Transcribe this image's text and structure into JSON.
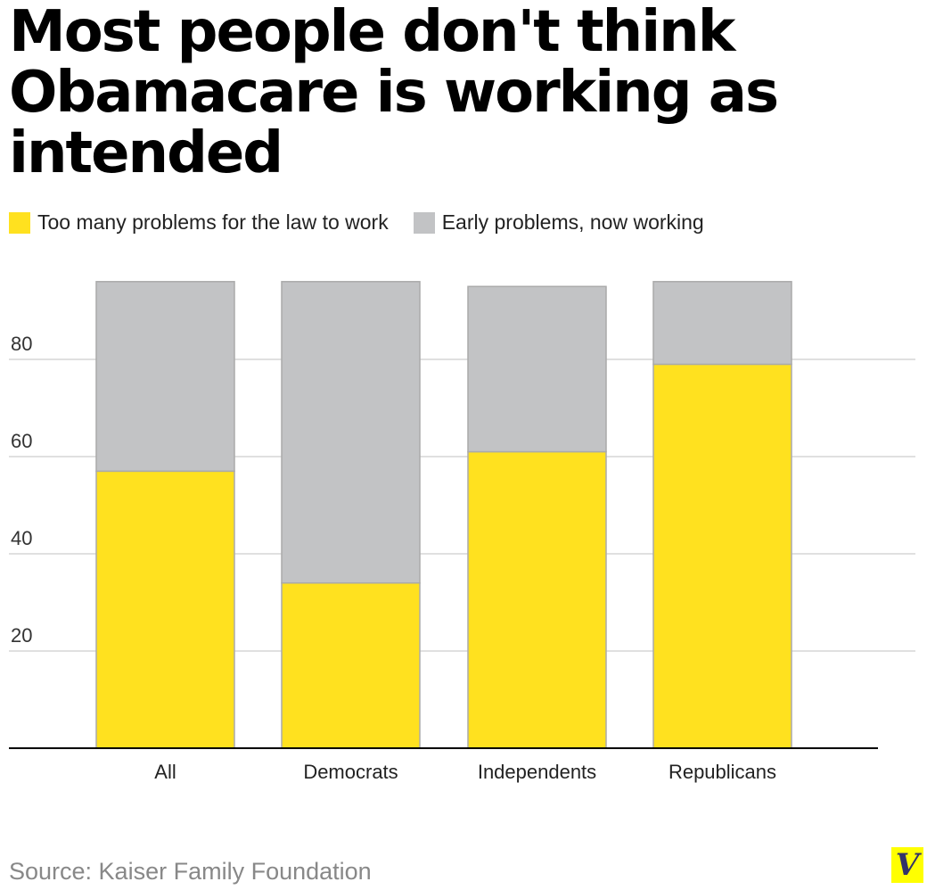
{
  "chart_data": {
    "type": "bar",
    "stacked": true,
    "title": "Most people don't think Obamacare is working as intended",
    "categories": [
      "All",
      "Democrats",
      "Independents",
      "Republicans"
    ],
    "series": [
      {
        "name": "Too many problems for the law to work",
        "color": "#ffe11f",
        "values": [
          57,
          34,
          61,
          79
        ]
      },
      {
        "name": "Early problems, now working",
        "color": "#c2c3c5",
        "values": [
          39,
          62,
          34,
          17
        ]
      }
    ],
    "yticks": [
      20,
      40,
      60,
      80
    ],
    "ylim": [
      0,
      100
    ],
    "grid": true,
    "legend": "top-left",
    "source": "Source: Kaiser Family Foundation"
  },
  "logo": "V"
}
